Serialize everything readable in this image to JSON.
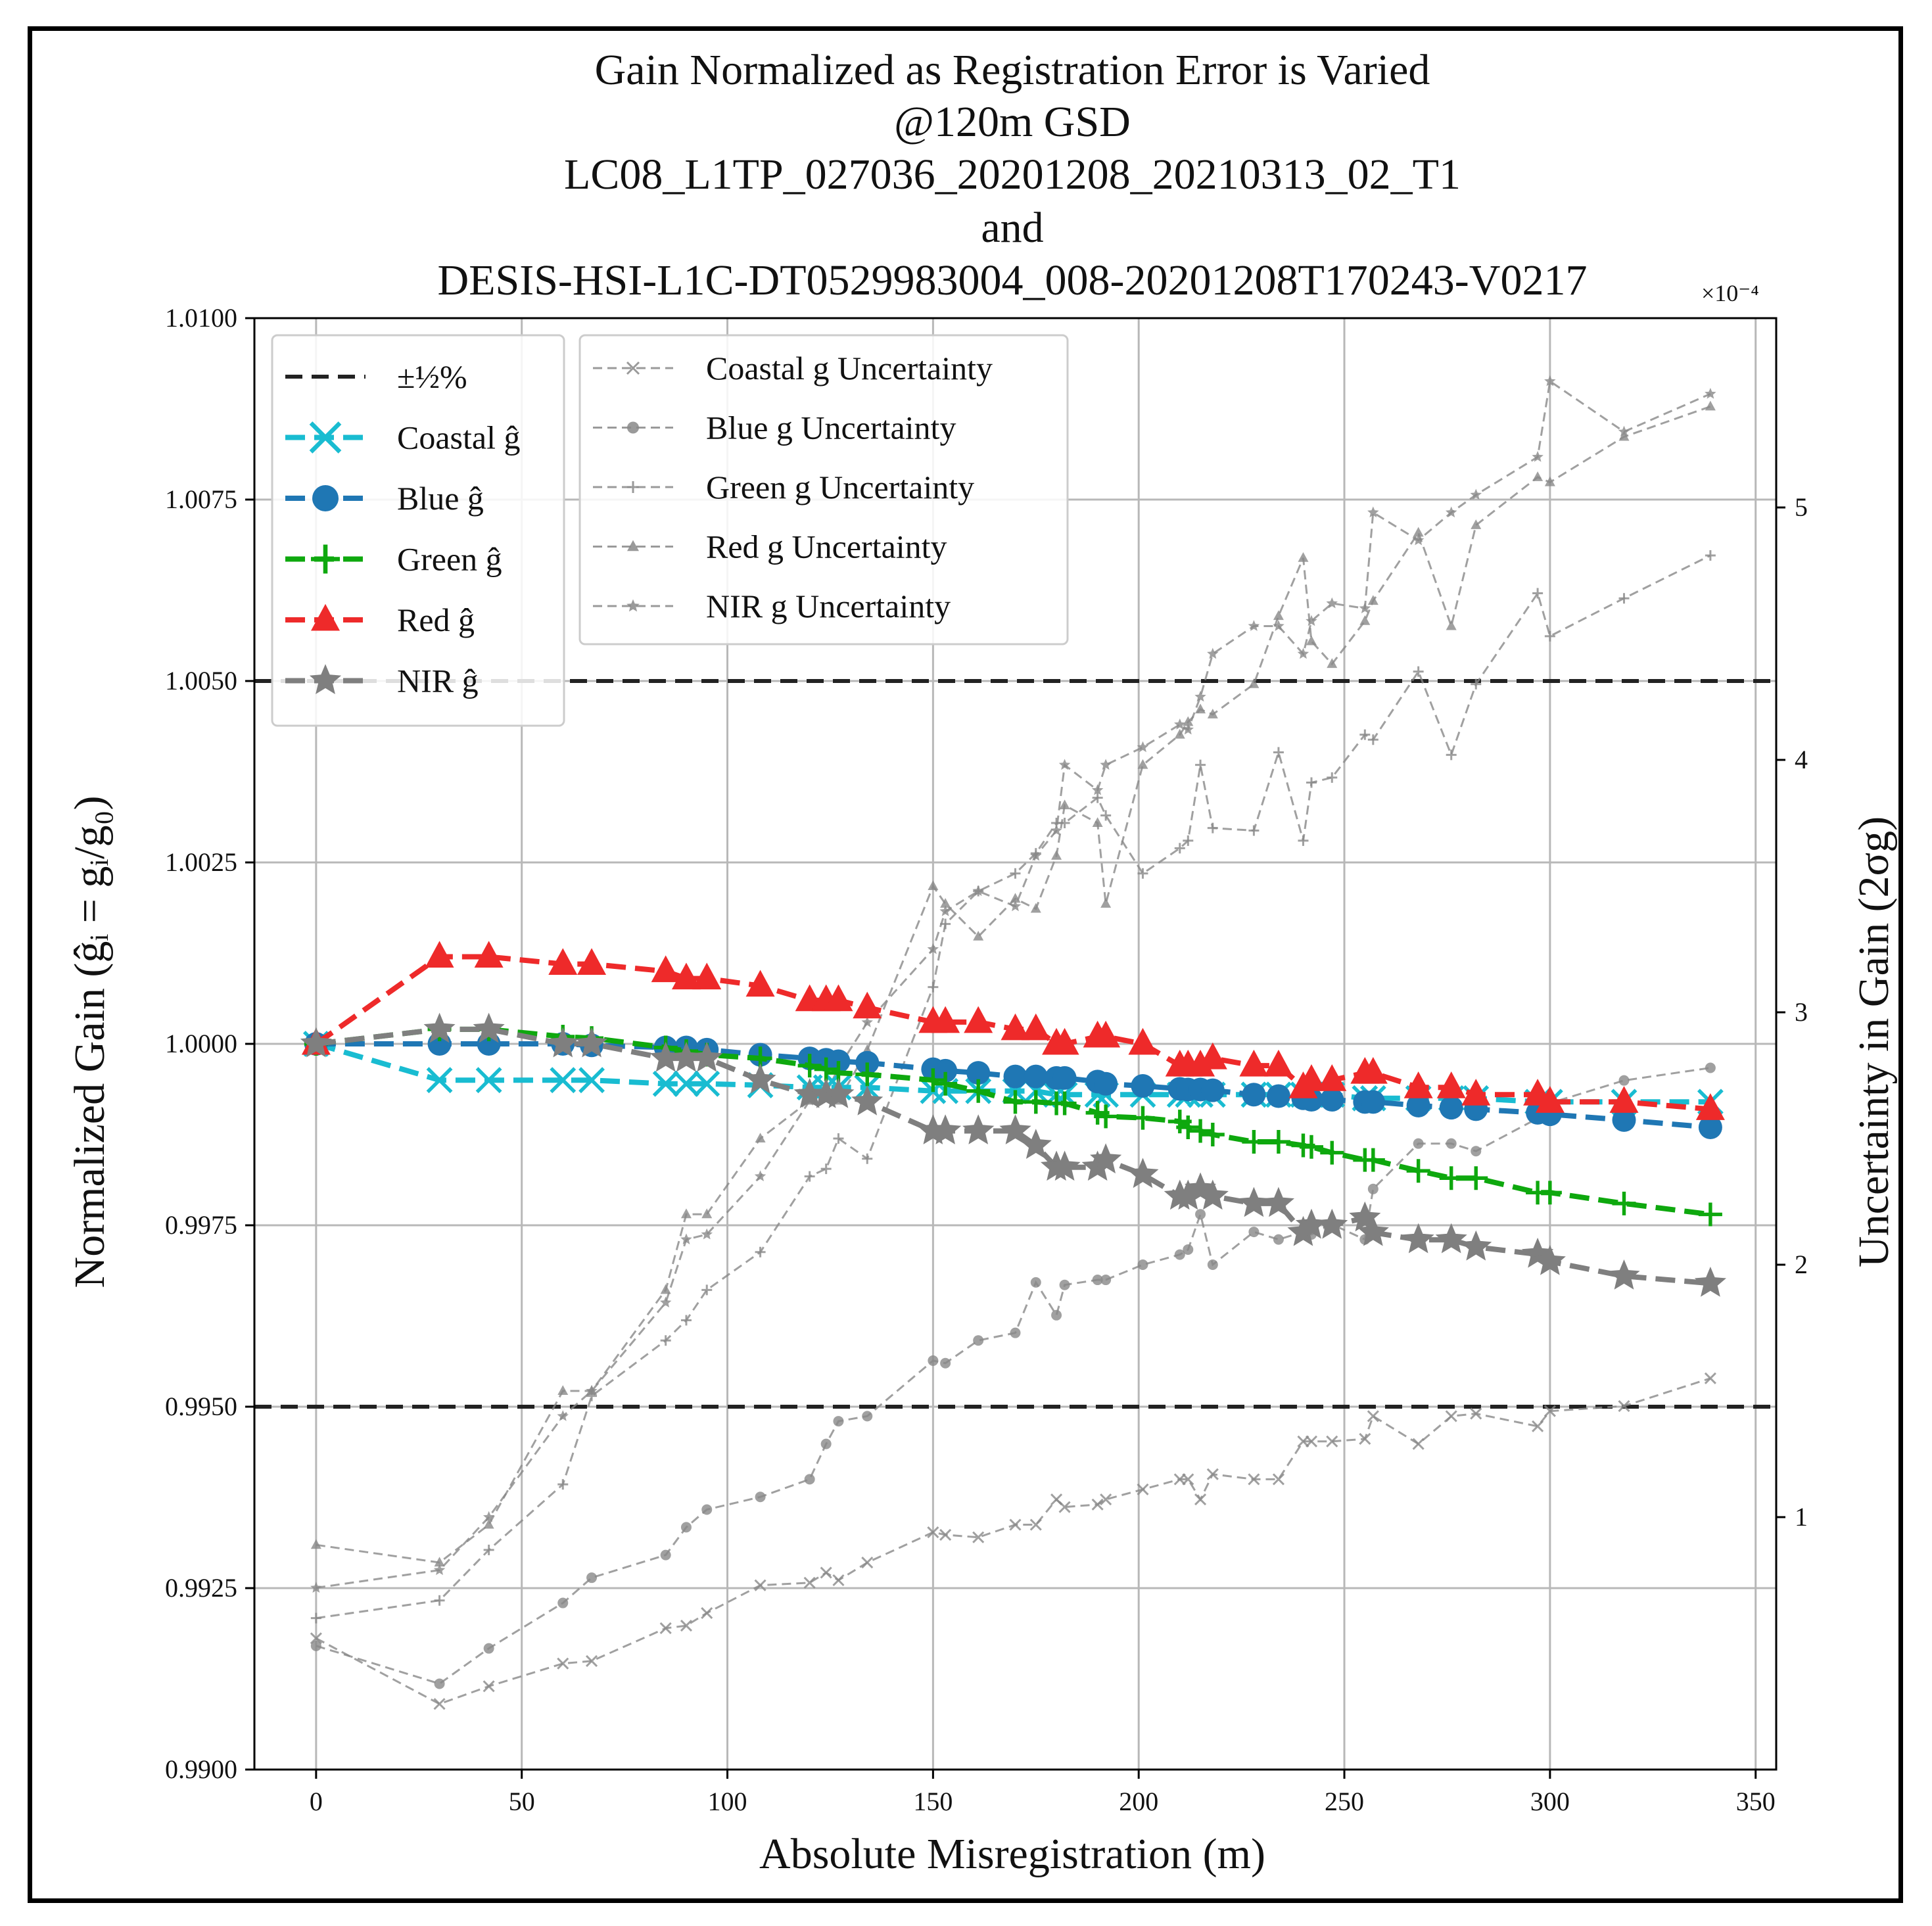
{
  "chart_data": {
    "type": "line",
    "title": [
      "Gain Normalized as Registration Error is Varied",
      "@120m GSD",
      "LC08_L1TP_027036_20201208_20210313_02_T1",
      "and",
      "DESIS-HSI-L1C-DT0529983004_008-20201208T170243-V0217"
    ],
    "xlabel": "Absolute Misregistration (m)",
    "ylabel_left": "Normalized Gain (ĝᵢ = gᵢ/g₀)",
    "ylabel_right": "Uncertainty in Gain (2σg)",
    "right_axis_multiplier": "×10⁻⁴",
    "xlim": [
      -15,
      355
    ],
    "ylim_left": [
      0.99,
      1.01
    ],
    "ylim_right": [
      0.0,
      5.75
    ],
    "xticks": [
      0,
      50,
      100,
      150,
      200,
      250,
      300,
      350
    ],
    "xtick_labels": [
      "0",
      "50",
      "100",
      "150",
      "200",
      "250",
      "300",
      "350"
    ],
    "yticks_left": [
      0.99,
      0.9925,
      0.995,
      0.9975,
      1.0,
      1.0025,
      1.005,
      1.0075,
      1.01
    ],
    "ytick_labels_left": [
      "0.9900",
      "0.9925",
      "0.9950",
      "0.9975",
      "1.0000",
      "1.0025",
      "1.0050",
      "1.0075",
      "1.0100"
    ],
    "yticks_right": [
      1,
      2,
      3,
      4,
      5
    ],
    "ytick_labels_right": [
      "1",
      "2",
      "3",
      "4",
      "5"
    ],
    "grid": true,
    "reference_lines": {
      "label": "±½%",
      "values": [
        1.005,
        0.995
      ],
      "color": "#222222"
    },
    "legend_left": {
      "position": "upper-left",
      "entries": [
        "±½%",
        "Coastal ĝ",
        "Blue ĝ",
        "Green ĝ",
        "Red ĝ",
        "NIR ĝ"
      ]
    },
    "legend_right": {
      "position": "upper-center",
      "entries": [
        "Coastal g Uncertainty",
        "Blue g Uncertainty",
        "Green g Uncertainty",
        "Red g Uncertainty",
        "NIR g Uncertainty"
      ]
    },
    "series": [
      {
        "name": "Coastal ĝ",
        "axis": "left",
        "color": "#19bcd1",
        "marker": "x",
        "x": [
          0,
          30,
          42,
          60,
          67,
          85,
          90,
          95,
          108,
          120,
          124,
          127,
          134,
          150,
          153,
          161,
          170,
          175,
          180,
          182,
          190,
          192,
          201,
          210,
          212,
          215,
          218,
          228,
          234,
          240,
          242,
          247,
          255,
          257,
          268,
          276,
          282,
          297,
          300,
          318,
          339
        ],
        "y": [
          1.0,
          0.9995,
          0.9995,
          0.9995,
          0.9995,
          0.99945,
          0.99945,
          0.99945,
          0.99943,
          0.9994,
          0.9994,
          0.9994,
          0.9994,
          0.99935,
          0.99935,
          0.99935,
          0.99935,
          0.99935,
          0.9993,
          0.9993,
          0.9993,
          0.9993,
          0.9993,
          0.9993,
          0.9993,
          0.9993,
          0.9993,
          0.9993,
          0.9993,
          0.9993,
          0.9993,
          0.9993,
          0.99925,
          0.99925,
          0.99925,
          0.99925,
          0.99925,
          0.9992,
          0.9992,
          0.9992,
          0.9992
        ]
      },
      {
        "name": "Blue ĝ",
        "axis": "left",
        "color": "#1f77b4",
        "marker": "o",
        "x": [
          0,
          30,
          42,
          60,
          67,
          85,
          90,
          95,
          108,
          120,
          124,
          127,
          134,
          150,
          153,
          161,
          170,
          175,
          180,
          182,
          190,
          192,
          201,
          210,
          212,
          215,
          218,
          228,
          234,
          240,
          242,
          247,
          255,
          257,
          268,
          276,
          282,
          297,
          300,
          318,
          339
        ],
        "y": [
          1.0,
          1.0,
          1.0,
          1.0,
          0.99998,
          0.99995,
          0.99995,
          0.99992,
          0.99985,
          0.9998,
          0.99978,
          0.99976,
          0.99974,
          0.99965,
          0.99963,
          0.9996,
          0.99955,
          0.99955,
          0.99953,
          0.99953,
          0.99948,
          0.99945,
          0.99942,
          0.99938,
          0.99937,
          0.99937,
          0.99936,
          0.9993,
          0.99928,
          0.99925,
          0.99923,
          0.99923,
          0.9992,
          0.9992,
          0.99915,
          0.99912,
          0.9991,
          0.99905,
          0.99903,
          0.99895,
          0.99885
        ]
      },
      {
        "name": "Green ĝ",
        "axis": "left",
        "color": "#0ea80e",
        "marker": "+",
        "x": [
          0,
          30,
          42,
          60,
          67,
          85,
          90,
          95,
          108,
          120,
          124,
          127,
          134,
          150,
          153,
          161,
          170,
          175,
          180,
          182,
          190,
          192,
          201,
          210,
          212,
          215,
          218,
          228,
          234,
          240,
          242,
          247,
          255,
          257,
          268,
          276,
          282,
          297,
          300,
          318,
          339
        ],
        "y": [
          1.0,
          1.0002,
          1.0002,
          1.0001,
          1.00008,
          0.99995,
          0.9999,
          0.99985,
          0.9998,
          0.9997,
          0.99965,
          0.9996,
          0.99958,
          0.9995,
          0.99945,
          0.99935,
          0.9992,
          0.9992,
          0.99918,
          0.99918,
          0.99905,
          0.999,
          0.99898,
          0.99893,
          0.99885,
          0.9988,
          0.99875,
          0.99865,
          0.99865,
          0.9986,
          0.99858,
          0.9985,
          0.9984,
          0.9984,
          0.99825,
          0.99815,
          0.99815,
          0.99795,
          0.99795,
          0.9978,
          0.99765
        ]
      },
      {
        "name": "Red ĝ",
        "axis": "left",
        "color": "#ee2a2a",
        "marker": "^",
        "x": [
          0,
          30,
          42,
          60,
          67,
          85,
          90,
          95,
          108,
          120,
          124,
          127,
          134,
          150,
          153,
          161,
          170,
          175,
          180,
          182,
          190,
          192,
          201,
          210,
          212,
          215,
          218,
          228,
          234,
          240,
          242,
          247,
          255,
          257,
          268,
          276,
          282,
          297,
          300,
          318,
          339
        ],
        "y": [
          1.0,
          1.0012,
          1.0012,
          1.0011,
          1.0011,
          1.001,
          1.0009,
          1.0009,
          1.0008,
          1.0006,
          1.0006,
          1.0006,
          1.0005,
          1.0003,
          1.0003,
          1.0003,
          1.0002,
          1.0002,
          1.0,
          1.0,
          1.0001,
          1.0001,
          1.0,
          0.9997,
          0.9997,
          0.9997,
          0.9998,
          0.9997,
          0.9997,
          0.9994,
          0.9995,
          0.9995,
          0.9996,
          0.9996,
          0.9994,
          0.9994,
          0.9993,
          0.9993,
          0.9992,
          0.9992,
          0.9991
        ]
      },
      {
        "name": "NIR ĝ",
        "axis": "left",
        "color": "#7f7f7f",
        "marker": "*",
        "x": [
          0,
          30,
          42,
          60,
          67,
          85,
          90,
          95,
          108,
          120,
          124,
          127,
          134,
          150,
          153,
          161,
          170,
          175,
          180,
          182,
          190,
          192,
          201,
          210,
          212,
          215,
          218,
          228,
          234,
          240,
          242,
          247,
          255,
          257,
          268,
          276,
          282,
          297,
          300,
          318,
          339
        ],
        "y": [
          1.0,
          1.0002,
          1.0002,
          1.0,
          1.0,
          0.9998,
          0.9998,
          0.9998,
          0.9995,
          0.9993,
          0.9993,
          0.9993,
          0.9992,
          0.9988,
          0.9988,
          0.9988,
          0.9988,
          0.9986,
          0.9983,
          0.9983,
          0.9983,
          0.9984,
          0.9982,
          0.9979,
          0.9979,
          0.998,
          0.9979,
          0.9978,
          0.9978,
          0.9974,
          0.9975,
          0.9975,
          0.9976,
          0.9974,
          0.9973,
          0.9973,
          0.9972,
          0.9971,
          0.997,
          0.9968,
          0.9967
        ]
      },
      {
        "name": "Coastal g Uncertainty",
        "axis": "right",
        "color": "#888888",
        "marker": "x",
        "x": [
          0,
          30,
          42,
          60,
          67,
          85,
          90,
          95,
          108,
          120,
          124,
          127,
          134,
          150,
          153,
          161,
          170,
          175,
          180,
          182,
          190,
          192,
          201,
          210,
          212,
          215,
          218,
          228,
          234,
          240,
          242,
          247,
          255,
          257,
          268,
          276,
          282,
          297,
          300,
          318,
          339
        ],
        "y": [
          0.52,
          0.26,
          0.33,
          0.42,
          0.43,
          0.56,
          0.57,
          0.62,
          0.73,
          0.74,
          0.78,
          0.75,
          0.82,
          0.94,
          0.93,
          0.92,
          0.97,
          0.97,
          1.07,
          1.04,
          1.05,
          1.07,
          1.11,
          1.15,
          1.15,
          1.07,
          1.17,
          1.15,
          1.15,
          1.3,
          1.3,
          1.3,
          1.31,
          1.4,
          1.29,
          1.4,
          1.41,
          1.36,
          1.42,
          1.44,
          1.55
        ]
      },
      {
        "name": "Blue g Uncertainty",
        "axis": "right",
        "color": "#888888",
        "marker": "o",
        "x": [
          0,
          30,
          42,
          60,
          67,
          85,
          90,
          95,
          108,
          120,
          124,
          127,
          134,
          150,
          153,
          161,
          170,
          175,
          180,
          182,
          190,
          192,
          201,
          210,
          212,
          215,
          218,
          228,
          234,
          240,
          242,
          247,
          255,
          257,
          268,
          276,
          282,
          297,
          300,
          318,
          339
        ],
        "y": [
          0.49,
          0.34,
          0.48,
          0.66,
          0.76,
          0.85,
          0.96,
          1.03,
          1.08,
          1.15,
          1.29,
          1.38,
          1.4,
          1.62,
          1.61,
          1.7,
          1.73,
          1.93,
          1.8,
          1.92,
          1.94,
          1.94,
          2.0,
          2.04,
          2.06,
          2.2,
          2.0,
          2.13,
          2.1,
          2.13,
          2.12,
          2.16,
          2.1,
          2.3,
          2.48,
          2.48,
          2.45,
          2.58,
          2.64,
          2.73,
          2.78
        ]
      },
      {
        "name": "Green g Uncertainty",
        "axis": "right",
        "color": "#888888",
        "marker": "+",
        "x": [
          0,
          30,
          42,
          60,
          67,
          85,
          90,
          95,
          108,
          120,
          124,
          127,
          134,
          150,
          153,
          161,
          170,
          175,
          180,
          182,
          190,
          192,
          201,
          210,
          212,
          215,
          218,
          228,
          234,
          240,
          242,
          247,
          255,
          257,
          268,
          276,
          282,
          297,
          300,
          318,
          339
        ],
        "y": [
          0.6,
          0.67,
          0.87,
          1.13,
          1.48,
          1.7,
          1.78,
          1.9,
          2.05,
          2.35,
          2.38,
          2.5,
          2.42,
          3.1,
          3.35,
          3.48,
          3.55,
          3.63,
          3.75,
          3.75,
          3.85,
          3.78,
          3.55,
          3.65,
          3.68,
          3.98,
          3.73,
          3.72,
          4.03,
          3.68,
          3.91,
          3.93,
          4.1,
          4.08,
          4.35,
          4.02,
          4.3,
          4.66,
          4.49,
          4.64,
          4.81
        ]
      },
      {
        "name": "Red g Uncertainty",
        "axis": "right",
        "color": "#888888",
        "marker": "^",
        "x": [
          0,
          30,
          42,
          60,
          67,
          85,
          90,
          95,
          108,
          120,
          124,
          127,
          134,
          150,
          153,
          161,
          170,
          175,
          180,
          182,
          190,
          192,
          201,
          210,
          212,
          215,
          218,
          228,
          234,
          240,
          242,
          247,
          255,
          257,
          268,
          276,
          282,
          297,
          300,
          318,
          339
        ],
        "y": [
          0.89,
          0.82,
          0.97,
          1.5,
          1.5,
          1.9,
          2.2,
          2.2,
          2.5,
          2.65,
          2.68,
          2.65,
          2.85,
          3.5,
          3.43,
          3.3,
          3.45,
          3.41,
          3.62,
          3.82,
          3.75,
          3.43,
          3.98,
          4.1,
          4.15,
          4.2,
          4.18,
          4.3,
          4.57,
          4.8,
          4.47,
          4.38,
          4.55,
          4.63,
          4.9,
          4.53,
          4.93,
          5.12,
          5.1,
          5.28,
          5.4
        ]
      },
      {
        "name": "NIR g Uncertainty",
        "axis": "right",
        "color": "#888888",
        "marker": "*",
        "x": [
          0,
          30,
          42,
          60,
          67,
          85,
          90,
          95,
          108,
          120,
          124,
          127,
          134,
          150,
          153,
          161,
          170,
          175,
          180,
          182,
          190,
          192,
          201,
          210,
          212,
          215,
          218,
          228,
          234,
          240,
          242,
          247,
          255,
          257,
          268,
          276,
          282,
          297,
          300,
          318,
          339
        ],
        "y": [
          0.72,
          0.79,
          1.0,
          1.4,
          1.5,
          1.85,
          2.1,
          2.12,
          2.35,
          2.65,
          2.68,
          2.78,
          2.96,
          3.25,
          3.4,
          3.48,
          3.42,
          3.62,
          3.72,
          3.98,
          3.88,
          3.98,
          4.05,
          4.14,
          4.12,
          4.25,
          4.42,
          4.53,
          4.53,
          4.42,
          4.55,
          4.62,
          4.6,
          4.98,
          4.87,
          4.98,
          5.05,
          5.2,
          5.5,
          5.3,
          5.45
        ]
      }
    ]
  }
}
